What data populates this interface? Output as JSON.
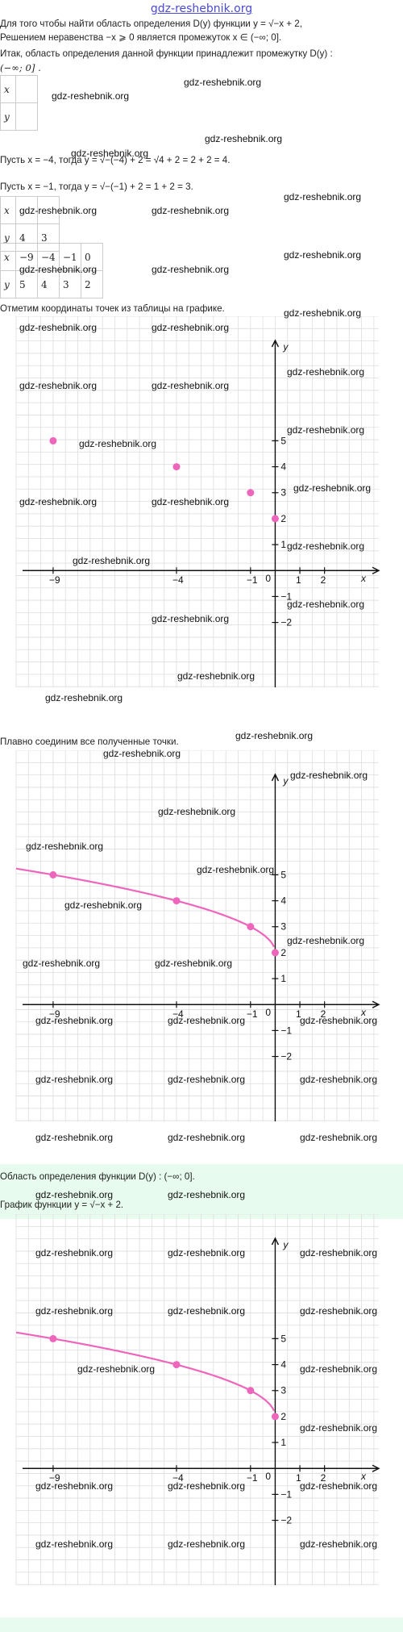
{
  "site": {
    "title": "gdz-reshebnik.org",
    "watermark": "gdz-reshebnik.org"
  },
  "text": {
    "p1a": "Для того чтобы найти область определения D(y) функции y = √−x + 2,",
    "p1b": "Решением неравенства −x ⩾ 0 является промежуток x ∈ (−∞; 0].",
    "p2a": "Итак, область определения данной функции принадлежит промежутку D(y) :",
    "p2b": "(−∞; 0] .",
    "p3": "Пусть x = −4, тогда y = √−(−4) + 2 = √4 + 2 = 2 + 2 = 4.",
    "p4": "Пусть x = −1, тогда y = √−(−1) + 2 = 1 + 2 = 3.",
    "p5": "Отметим координаты точек из таблицы на графике.",
    "p6": "Плавно соединим все полученные точки.",
    "p7": "Область определения функции D(y) : (−∞; 0].",
    "p8": "График функции y = √−x + 2."
  },
  "table1": {
    "x_label": "x",
    "y_label": "y"
  },
  "table2": {
    "x_label": "x",
    "y_label": "y",
    "y": [
      "4",
      "3"
    ]
  },
  "table3": {
    "x_label": "x",
    "y_label": "y",
    "x": [
      "−9",
      "−4",
      "−1",
      "0"
    ],
    "y": [
      "5",
      "4",
      "3",
      "2"
    ]
  },
  "colors": {
    "curve": "#ee66bb",
    "axis": "#111111",
    "grid": "#dddddd",
    "green": "#e8fbef",
    "title": "#4a4ad6"
  },
  "axis_labels": {
    "x": "x",
    "y": "y",
    "origin": "0",
    "x_ticks": [
      "−9",
      "−4",
      "−1",
      "1",
      "2"
    ],
    "y_ticks": [
      "5",
      "4",
      "3",
      "2",
      "1",
      "−1",
      "−2"
    ]
  },
  "chart_data": [
    {
      "type": "scatter",
      "title": "",
      "xlabel": "x",
      "ylabel": "y",
      "xlim": [
        -10.5,
        4.2
      ],
      "ylim": [
        -4.5,
        9.8
      ],
      "grid": true,
      "x": [
        -9,
        -4,
        -1,
        0
      ],
      "y": [
        5,
        4,
        3,
        2
      ]
    },
    {
      "type": "line",
      "title": "",
      "xlabel": "x",
      "ylabel": "y",
      "xlim": [
        -10.5,
        4.2
      ],
      "ylim": [
        -4.5,
        9.8
      ],
      "grid": true,
      "function": "y = sqrt(-x) + 2",
      "x_domain": [
        -10.5,
        0
      ],
      "points": {
        "x": [
          -9,
          -4,
          -1,
          0
        ],
        "y": [
          5,
          4,
          3,
          2
        ]
      }
    },
    {
      "type": "line",
      "title": "",
      "xlabel": "x",
      "ylabel": "y",
      "xlim": [
        -10.5,
        4.2
      ],
      "ylim": [
        -4.5,
        9.8
      ],
      "grid": true,
      "function": "y = sqrt(-x) + 2",
      "x_domain": [
        -10.5,
        0
      ],
      "points": {
        "x": [
          -9,
          -4,
          -1,
          0
        ],
        "y": [
          5,
          4,
          3,
          2
        ]
      }
    }
  ]
}
